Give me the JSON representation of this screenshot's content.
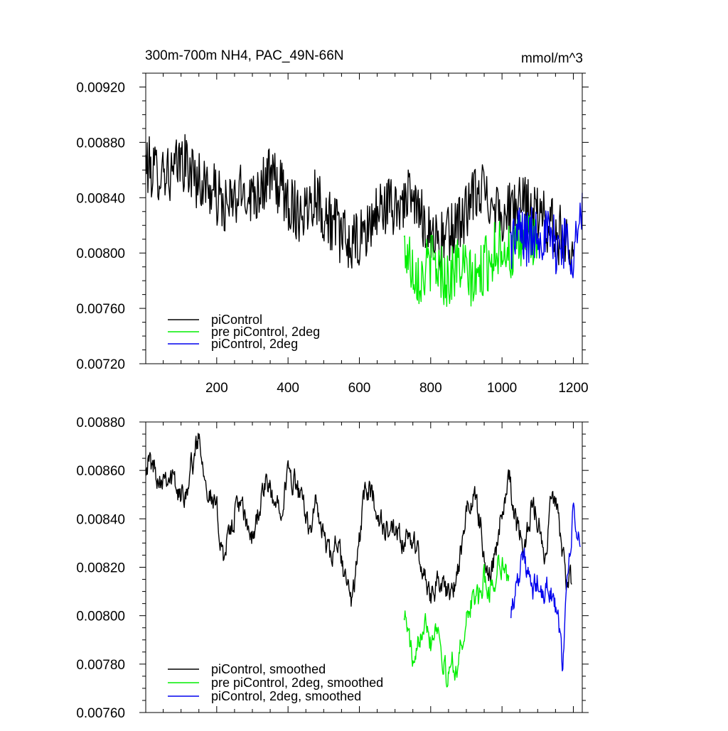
{
  "chart_data": [
    {
      "type": "line",
      "title": "300m-700m NH4, PAC_49N-66N",
      "units": "mmol/m^3",
      "xlabel": "",
      "ylabel": "",
      "xlim": [
        1,
        1225
      ],
      "ylim": [
        0.0072,
        0.0093
      ],
      "x_ticks": [
        200,
        400,
        600,
        800,
        1000,
        1200
      ],
      "x_tick_labels": [
        "200",
        "400",
        "600",
        "800",
        "1000",
        "1200"
      ],
      "y_ticks": [
        0.0072,
        0.0076,
        0.008,
        0.0084,
        0.0088,
        0.0092
      ],
      "y_tick_labels": [
        "0.00720",
        "0.00760",
        "0.00800",
        "0.00840",
        "0.00880",
        "0.00920"
      ],
      "grid": false,
      "legend_position": "bottom-left",
      "series": [
        {
          "name": "piControl",
          "color": "#000000",
          "x_start": 1,
          "x_step": 25,
          "values": [
            0.00865,
            0.00858,
            0.00862,
            0.00855,
            0.00868,
            0.0086,
            0.00852,
            0.00848,
            0.0084,
            0.00832,
            0.00838,
            0.00845,
            0.00842,
            0.0085,
            0.00855,
            0.00848,
            0.00838,
            0.0083,
            0.00832,
            0.00845,
            0.00828,
            0.00822,
            0.00812,
            0.00805,
            0.00808,
            0.00818,
            0.0083,
            0.00835,
            0.00832,
            0.0084,
            0.00836,
            0.00826,
            0.00815,
            0.00808,
            0.00812,
            0.00822,
            0.0083,
            0.00842,
            0.00845,
            0.00838,
            0.00828,
            0.0083,
            0.00835,
            0.00832,
            0.00828,
            0.00822,
            0.00815,
            0.0081,
            0.00805
          ]
        },
        {
          "name": "pre piControl, 2deg",
          "color": "#00ee00",
          "x_start": 725,
          "x_step": 25,
          "values": [
            0.00805,
            0.0079,
            0.00782,
            0.00795,
            0.00788,
            0.0078,
            0.00792,
            0.00785,
            0.00778,
            0.0079,
            0.008,
            0.00808,
            0.00798,
            0.00805,
            0.00815,
            0.00808
          ]
        },
        {
          "name": "piControl, 2deg",
          "color": "#0000ee",
          "x_start": 1025,
          "x_step": 25,
          "values": [
            0.00808,
            0.00815,
            0.0081,
            0.00818,
            0.00812,
            0.00805,
            0.0081,
            0.00802,
            0.00825
          ]
        }
      ]
    },
    {
      "type": "line",
      "title": "",
      "xlabel": "",
      "ylabel": "",
      "xlim": [
        1,
        1225
      ],
      "ylim": [
        0.0076,
        0.0088
      ],
      "x_ticks": [
        200,
        400,
        600,
        800,
        1000,
        1200
      ],
      "y_ticks": [
        0.0076,
        0.0078,
        0.008,
        0.0082,
        0.0084,
        0.0086,
        0.0088
      ],
      "y_tick_labels": [
        "0.00760",
        "0.00780",
        "0.00800",
        "0.00820",
        "0.00840",
        "0.00860",
        "0.00880"
      ],
      "grid": false,
      "legend_position": "bottom-left",
      "series": [
        {
          "name": "piControl, smoothed",
          "color": "#000000",
          "x": [
            1,
            20,
            40,
            60,
            80,
            100,
            120,
            140,
            150,
            160,
            180,
            200,
            220,
            240,
            260,
            280,
            300,
            320,
            340,
            360,
            380,
            400,
            420,
            440,
            460,
            480,
            500,
            520,
            540,
            560,
            580,
            600,
            620,
            640,
            660,
            680,
            700,
            720,
            740,
            760,
            780,
            800,
            820,
            840,
            860,
            880,
            900,
            920,
            940,
            960,
            980,
            1000,
            1020,
            1040,
            1060,
            1080,
            1100,
            1120,
            1140,
            1160,
            1180,
            1195
          ],
          "values": [
            0.00865,
            0.00862,
            0.00858,
            0.0086,
            0.00855,
            0.00848,
            0.00856,
            0.00868,
            0.00875,
            0.00866,
            0.0085,
            0.00842,
            0.00825,
            0.00835,
            0.00848,
            0.00838,
            0.00832,
            0.00845,
            0.00855,
            0.00845,
            0.00848,
            0.00858,
            0.00855,
            0.00845,
            0.00838,
            0.00845,
            0.00832,
            0.00822,
            0.0083,
            0.00815,
            0.00805,
            0.00832,
            0.00855,
            0.00848,
            0.00838,
            0.00835,
            0.00832,
            0.0083,
            0.0083,
            0.0083,
            0.00815,
            0.0081,
            0.00815,
            0.0081,
            0.00808,
            0.0082,
            0.00842,
            0.0085,
            0.00838,
            0.00815,
            0.00825,
            0.00845,
            0.00858,
            0.00838,
            0.00826,
            0.00845,
            0.00842,
            0.0082,
            0.00852,
            0.00838,
            0.00815,
            0.00812
          ]
        },
        {
          "name": "pre piControl, 2deg, smoothed",
          "color": "#00ee00",
          "x": [
            725,
            740,
            755,
            770,
            785,
            800,
            815,
            830,
            845,
            860,
            875,
            890,
            905,
            920,
            935,
            950,
            965,
            980,
            995,
            1010,
            1020
          ],
          "values": [
            0.00803,
            0.0079,
            0.00775,
            0.00792,
            0.00804,
            0.0079,
            0.00798,
            0.00788,
            0.00772,
            0.00782,
            0.00778,
            0.00792,
            0.008,
            0.0081,
            0.00805,
            0.00815,
            0.0081,
            0.00815,
            0.00825,
            0.00818,
            0.00812
          ]
        },
        {
          "name": "piControl, 2deg, smoothed",
          "color": "#0000ee",
          "x": [
            1025,
            1040,
            1055,
            1070,
            1085,
            1100,
            1115,
            1130,
            1145,
            1160,
            1170,
            1180,
            1190,
            1200,
            1210,
            1220
          ],
          "values": [
            0.00803,
            0.00812,
            0.00826,
            0.00818,
            0.00808,
            0.00815,
            0.00805,
            0.00815,
            0.00805,
            0.00795,
            0.00778,
            0.0081,
            0.00825,
            0.00842,
            0.00835,
            0.00828
          ]
        }
      ]
    }
  ]
}
